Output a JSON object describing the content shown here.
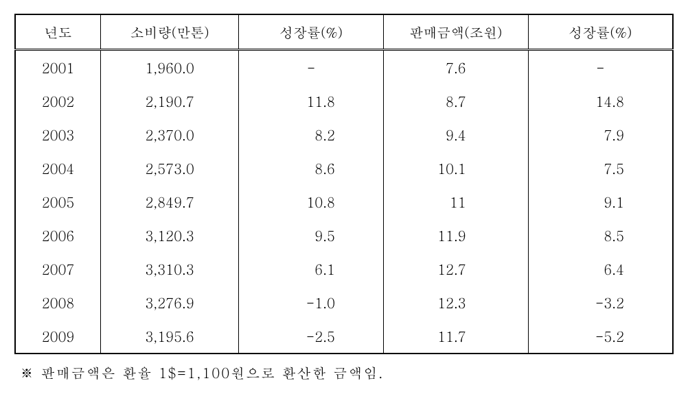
{
  "table": {
    "columns": [
      "년도",
      "소비량(만톤)",
      "성장률(%)",
      "판매금액(조원)",
      "성장률(%)"
    ],
    "column_widths_pct": [
      13,
      21,
      22,
      22,
      22
    ],
    "rows": [
      {
        "year": "2001",
        "consumption": "1,960.0",
        "growth1": "-",
        "sales": "7.6",
        "growth2": "-"
      },
      {
        "year": "2002",
        "consumption": "2,190.7",
        "growth1": "11.8",
        "sales": "8.7",
        "growth2": "14.8"
      },
      {
        "year": "2003",
        "consumption": "2,370.0",
        "growth1": "8.2",
        "sales": "9.4",
        "growth2": "7.9"
      },
      {
        "year": "2004",
        "consumption": "2,573.0",
        "growth1": "8.6",
        "sales": "10.1",
        "growth2": "7.5"
      },
      {
        "year": "2005",
        "consumption": "2,849.7",
        "growth1": "10.8",
        "sales": "11",
        "growth2": "9.1"
      },
      {
        "year": "2006",
        "consumption": "3,120.3",
        "growth1": "9.5",
        "sales": "11.9",
        "growth2": "8.5"
      },
      {
        "year": "2007",
        "consumption": "3,310.3",
        "growth1": "6.1",
        "sales": "12.7",
        "growth2": "6.4"
      },
      {
        "year": "2008",
        "consumption": "3,276.9",
        "growth1": "-1.0",
        "sales": "12.3",
        "growth2": "-3.2"
      },
      {
        "year": "2009",
        "consumption": "3,195.6",
        "growth1": "-2.5",
        "sales": "11.7",
        "growth2": "-5.2"
      }
    ],
    "border_color": "#000000",
    "background_color": "#ffffff",
    "text_color": "#000000",
    "font_size_pt": 15,
    "header_border_style": "double"
  },
  "footnote": {
    "marker": "※",
    "text": "판매금액은 환율 1$=1,100원으로 환산한 금액임."
  }
}
